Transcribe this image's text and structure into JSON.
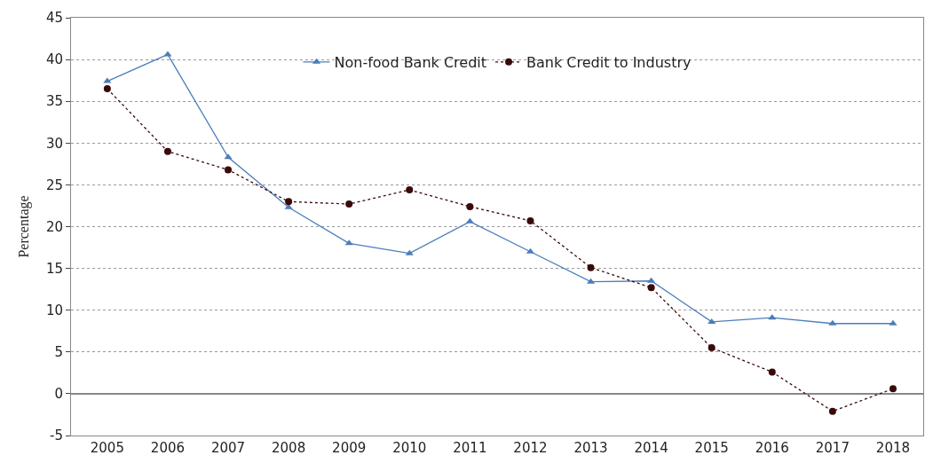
{
  "chart_data": {
    "type": "line",
    "ylabel": "Percentage",
    "categories": [
      "2005",
      "2006",
      "2007",
      "2008",
      "2009",
      "2010",
      "2011",
      "2012",
      "2013",
      "2014",
      "2015",
      "2016",
      "2017",
      "2018"
    ],
    "series": [
      {
        "name": "Non-food Bank Credit",
        "color": "#4a7ebb",
        "marker": "triangle",
        "line_style": "solid",
        "values": [
          37.4,
          40.6,
          28.3,
          22.3,
          18.0,
          16.8,
          20.6,
          17.0,
          13.4,
          13.5,
          8.6,
          9.1,
          8.4,
          8.4
        ]
      },
      {
        "name": "Bank Credit to Industry",
        "color": "#3a0a0a",
        "marker": "circle",
        "line_style": "dotted",
        "values": [
          36.5,
          29.0,
          26.8,
          23.0,
          22.7,
          24.4,
          22.4,
          20.7,
          15.1,
          12.7,
          5.5,
          2.6,
          -2.1,
          0.6
        ]
      }
    ],
    "ylim": [
      -5,
      45
    ],
    "yticks": [
      -5,
      0,
      5,
      10,
      15,
      20,
      25,
      30,
      35,
      40,
      45
    ],
    "grid": "y",
    "legend": "top"
  }
}
